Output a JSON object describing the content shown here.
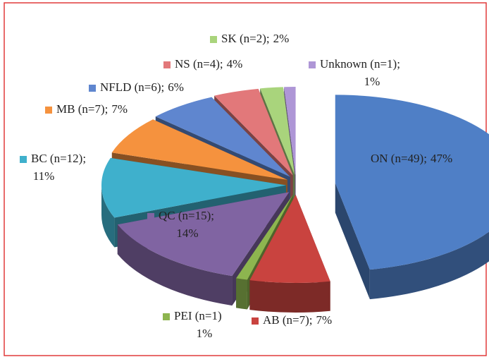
{
  "chart_data": {
    "type": "pie",
    "categories": [
      "ON (n=49);",
      "AB (n=7);",
      "PEI (n=1)",
      "QC (n=15);",
      "BC (n=12);",
      "MB (n=7);",
      "NFLD (n=6);",
      "NS (n=4);",
      "SK (n=2);",
      "Unknown (n=1);"
    ],
    "values": [
      47,
      7,
      1,
      14,
      11,
      7,
      6,
      4,
      2,
      1
    ],
    "value_labels": [
      "47%",
      "7%",
      "1%",
      "14%",
      "11%",
      "7%",
      "6%",
      "4%",
      "2%",
      "1%"
    ],
    "colors": [
      "#4f7fc6",
      "#c9433f",
      "#8db54f",
      "#8064a2",
      "#3fb0cc",
      "#f5923e",
      "#5f86cf",
      "#e2787a",
      "#a9d47c",
      "#ae96d6"
    ]
  }
}
